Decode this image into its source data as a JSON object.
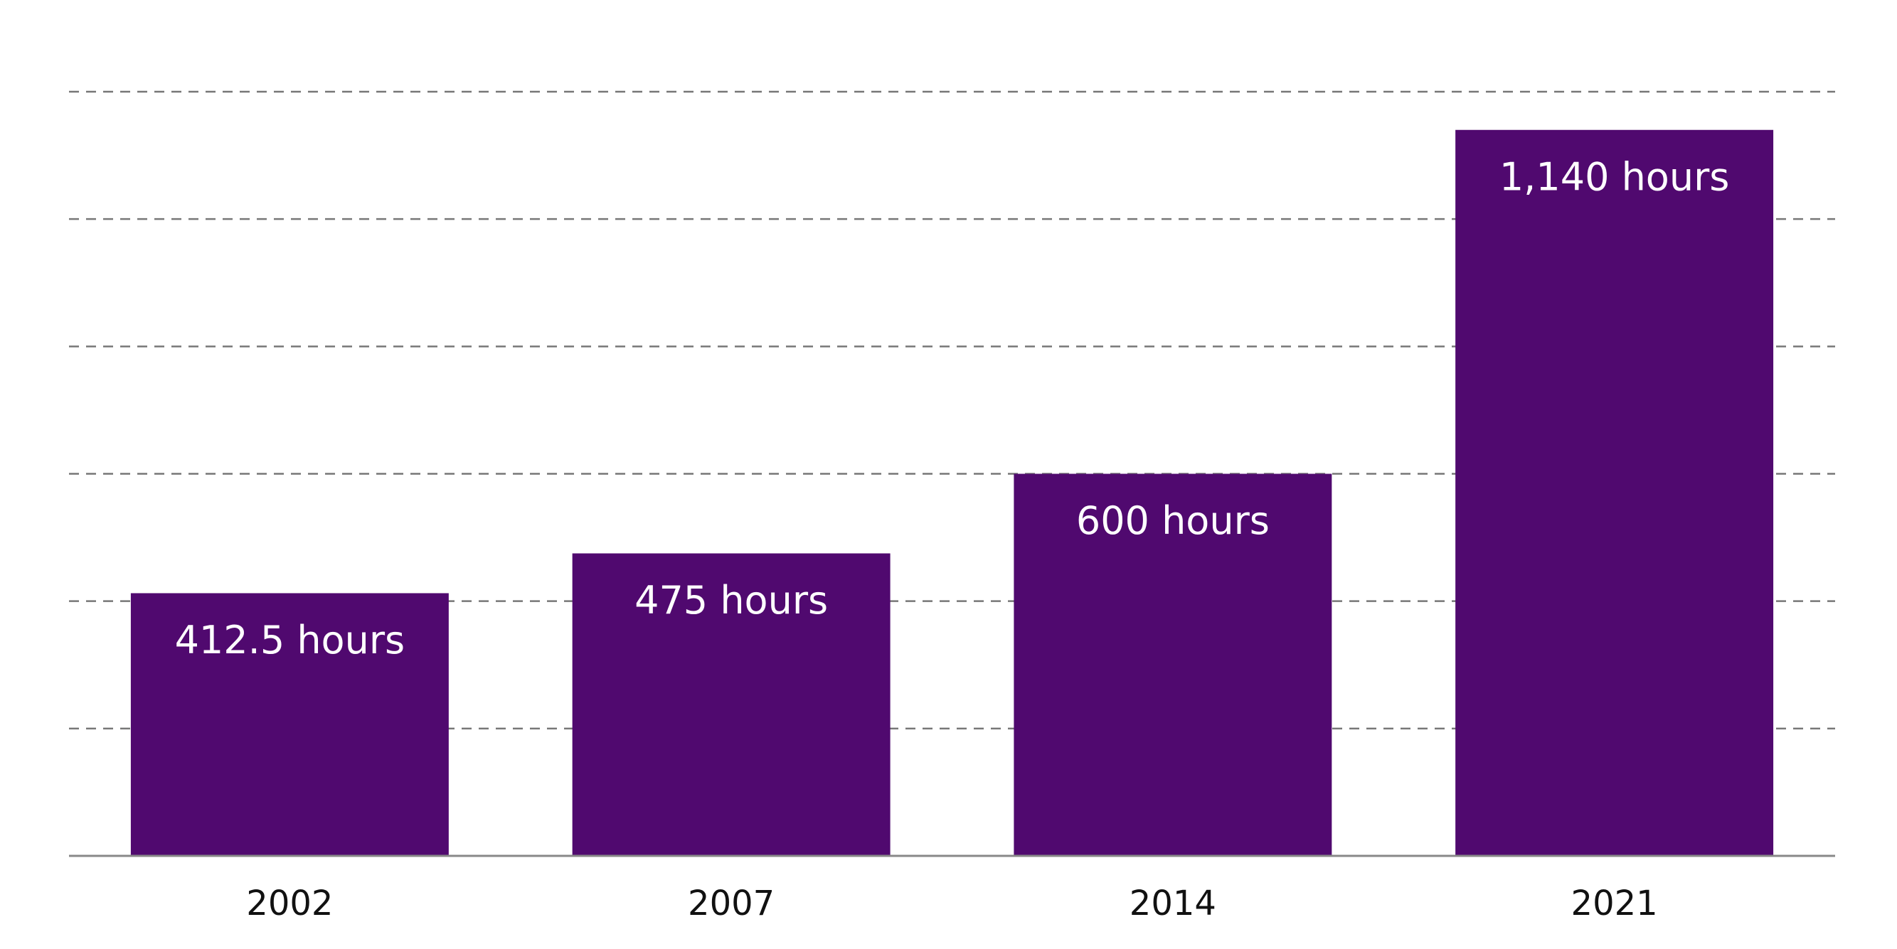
{
  "chart_data": {
    "type": "bar",
    "categories": [
      "2002",
      "2007",
      "2014",
      "2021"
    ],
    "values": [
      412.5,
      475,
      600,
      1140
    ],
    "value_labels": [
      "412.5 hours",
      "475 hours",
      "600 hours",
      "1,140 hours"
    ],
    "color": "#50096f",
    "ylim": [
      0,
      1200
    ],
    "yticks": [
      0,
      200,
      400,
      600,
      800,
      1000,
      1200
    ],
    "grid": true
  }
}
